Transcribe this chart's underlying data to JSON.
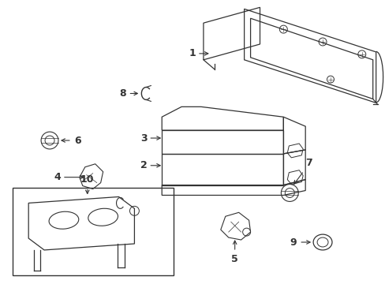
{
  "bg_color": "#ffffff",
  "line_color": "#333333",
  "label_color": "#000000",
  "fig_width": 4.89,
  "fig_height": 3.6,
  "dpi": 100
}
